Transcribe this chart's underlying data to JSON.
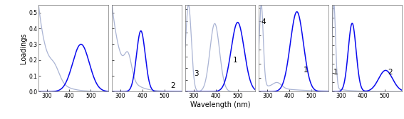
{
  "n_panels": 5,
  "xlim": [
    260,
    580
  ],
  "xticks": [
    300,
    400,
    500
  ],
  "xlabel": "Wavelength (nm)",
  "ylabel": "Loadings",
  "light_color": "#aab4d4",
  "dark_color": "#0a0aee",
  "ylims": [
    0.55,
    0.55,
    0.37,
    0.31,
    0.47
  ],
  "ytick_sets": [
    [
      0.0,
      0.1,
      0.2,
      0.3,
      0.4,
      0.5
    ],
    [
      0.0,
      0.1,
      0.2,
      0.3,
      0.4,
      0.5
    ],
    [
      0.0,
      0.05,
      0.1,
      0.15,
      0.2,
      0.25,
      0.3,
      0.35
    ],
    [
      0.0,
      0.05,
      0.1,
      0.15,
      0.2,
      0.25,
      0.3
    ],
    [
      0.0,
      0.05,
      0.1,
      0.15,
      0.2,
      0.25,
      0.3,
      0.35,
      0.4,
      0.45
    ]
  ],
  "annotations": [
    [],
    [
      [
        "2",
        540,
        0.015
      ]
    ],
    [
      [
        "3",
        310,
        0.06
      ],
      [
        "1",
        490,
        0.12
      ]
    ],
    [
      [
        "4",
        283,
        0.235
      ],
      [
        "1",
        475,
        0.065
      ]
    ],
    [
      [
        "1",
        277,
        0.085
      ],
      [
        "2",
        525,
        0.085
      ]
    ]
  ]
}
